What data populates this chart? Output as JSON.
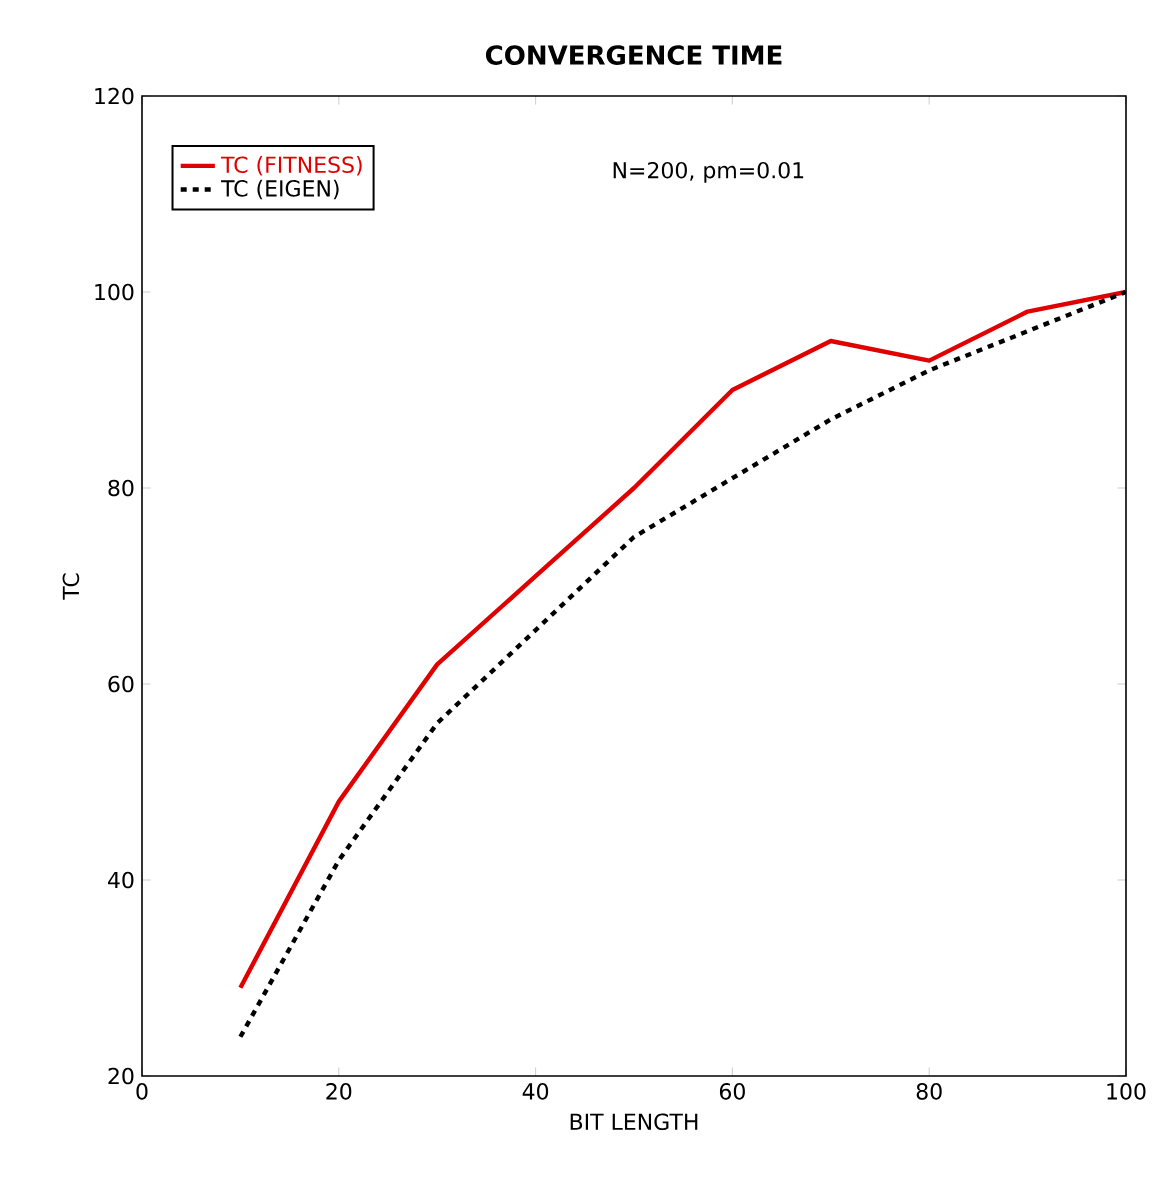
{
  "chart_data": {
    "type": "line",
    "title": "CONVERGENCE TIME",
    "xlabel": "BIT LENGTH",
    "ylabel": "TC",
    "x": [
      10,
      20,
      30,
      40,
      50,
      60,
      70,
      80,
      90,
      100
    ],
    "series": [
      {
        "name": "TC (FITNESS)",
        "color": "#e00000",
        "line_style": "solid",
        "values": [
          29,
          48,
          62,
          71,
          80,
          90,
          95,
          93,
          98,
          100
        ]
      },
      {
        "name": "TC (EIGEN)",
        "color": "#000000",
        "line_style": "dashed",
        "values": [
          24,
          42,
          56,
          65.5,
          75,
          81,
          87,
          92,
          96,
          100
        ]
      }
    ],
    "xlim": [
      0,
      100
    ],
    "ylim": [
      20,
      120
    ],
    "xticks": [
      0,
      20,
      40,
      60,
      80,
      100
    ],
    "yticks": [
      20,
      40,
      60,
      80,
      100,
      120
    ],
    "grid": false,
    "legend": "top left",
    "marker": "none",
    "annotations": [
      "N=200, pm=0.01"
    ]
  }
}
